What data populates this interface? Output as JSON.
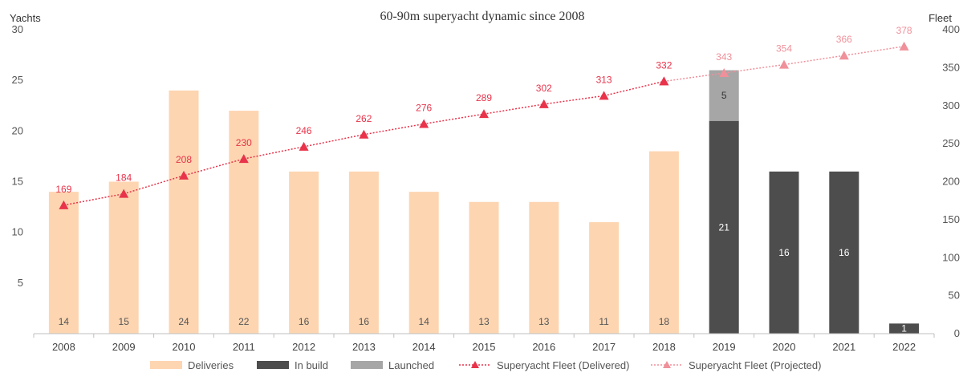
{
  "chart_data": {
    "type": "bar",
    "title": "60-90m superyacht dynamic since 2008",
    "ylabel": "Yachts",
    "y2label": "Fleet",
    "ylim": [
      0,
      30
    ],
    "y2lim": [
      0,
      400
    ],
    "yticks": [
      5,
      10,
      15,
      20,
      25,
      30
    ],
    "y2ticks": [
      0,
      50,
      100,
      150,
      200,
      250,
      300,
      350,
      400
    ],
    "categories": [
      "2008",
      "2009",
      "2010",
      "2011",
      "2012",
      "2013",
      "2014",
      "2015",
      "2016",
      "2017",
      "2018",
      "2019",
      "2020",
      "2021",
      "2022"
    ],
    "series": [
      {
        "name": "Deliveries",
        "kind": "bar",
        "color": "#fdd5b1",
        "values": [
          14,
          15,
          24,
          22,
          16,
          16,
          14,
          13,
          13,
          11,
          18,
          null,
          null,
          null,
          null
        ]
      },
      {
        "name": "In build",
        "kind": "bar",
        "color": "#4d4d4d",
        "values": [
          null,
          null,
          null,
          null,
          null,
          null,
          null,
          null,
          null,
          null,
          null,
          21,
          16,
          16,
          1
        ]
      },
      {
        "name": "Launched",
        "kind": "bar",
        "color": "#a6a6a6",
        "values": [
          null,
          null,
          null,
          null,
          null,
          null,
          null,
          null,
          null,
          null,
          null,
          5,
          null,
          null,
          null
        ]
      },
      {
        "name": "Superyacht Fleet (Delivered)",
        "kind": "line",
        "axis": "right",
        "color": "#e8334a",
        "values": [
          169,
          184,
          208,
          230,
          246,
          262,
          276,
          289,
          302,
          313,
          332,
          null,
          null,
          null,
          null
        ]
      },
      {
        "name": "Superyacht Fleet (Projected)",
        "kind": "line",
        "axis": "right",
        "color": "#f0909a",
        "values": [
          null,
          null,
          null,
          null,
          null,
          null,
          null,
          null,
          null,
          null,
          332,
          343,
          354,
          366,
          378
        ]
      }
    ],
    "legend_position": "bottom",
    "grid": false
  }
}
